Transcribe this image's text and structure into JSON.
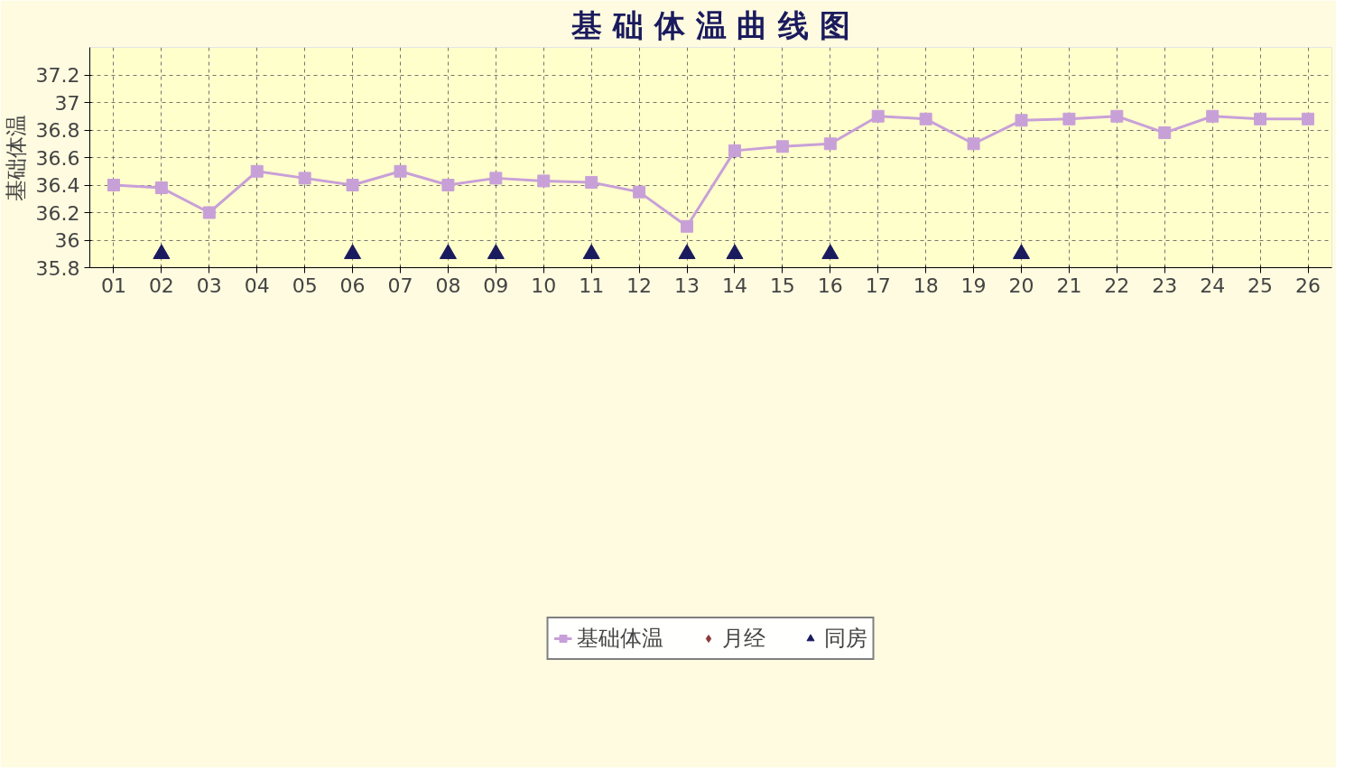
{
  "chart_data": {
    "type": "line",
    "title": "基 础 体 温 曲 线 图",
    "ylabel": "基础体温",
    "categories": [
      "01",
      "02",
      "03",
      "04",
      "05",
      "06",
      "07",
      "08",
      "09",
      "10",
      "11",
      "12",
      "13",
      "14",
      "15",
      "16",
      "17",
      "18",
      "19",
      "20",
      "21",
      "22",
      "23",
      "24",
      "25",
      "26"
    ],
    "series": [
      {
        "name": "基础体温",
        "marker": "square",
        "color": "#c8a0d8",
        "values": [
          36.4,
          36.38,
          36.2,
          36.5,
          36.45,
          36.4,
          36.5,
          36.4,
          36.45,
          36.43,
          36.42,
          36.35,
          36.1,
          36.65,
          36.68,
          36.7,
          36.9,
          36.88,
          36.7,
          36.87,
          36.88,
          36.9,
          36.78,
          36.9,
          36.88,
          36.88
        ]
      },
      {
        "name": "月经",
        "type": "scatter",
        "marker": "diamond",
        "color": "#8b3a3a",
        "values": [
          null,
          null,
          null,
          null,
          null,
          null,
          null,
          null,
          null,
          null,
          null,
          null,
          null,
          null,
          null,
          null,
          null,
          null,
          null,
          null,
          null,
          null,
          null,
          null,
          null,
          null
        ]
      },
      {
        "name": "同房",
        "type": "scatter",
        "marker": "triangle",
        "color": "#1a1a5e",
        "values": [
          null,
          35.9,
          null,
          null,
          null,
          35.9,
          null,
          35.9,
          35.9,
          null,
          35.9,
          null,
          35.9,
          35.9,
          null,
          35.9,
          null,
          null,
          null,
          35.9,
          null,
          null,
          null,
          null,
          null,
          null
        ]
      }
    ],
    "ylim": [
      35.8,
      37.4
    ],
    "yticks": [
      35.8,
      36,
      36.2,
      36.4,
      36.6,
      36.8,
      37,
      37.2
    ],
    "grid": true,
    "legend": "bottom"
  }
}
